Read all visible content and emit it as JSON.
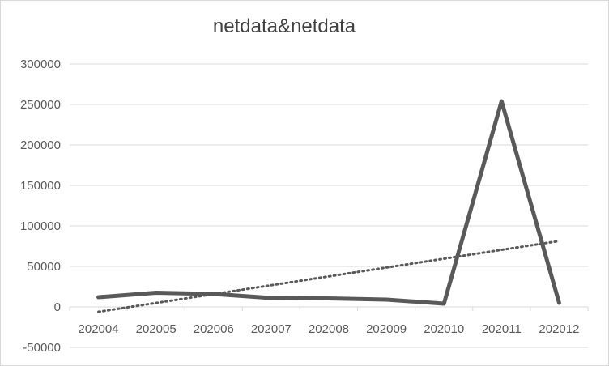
{
  "chart_data": {
    "type": "line",
    "title": "netdata&netdata",
    "categories": [
      "202004",
      "202005",
      "202006",
      "202007",
      "202008",
      "202009",
      "202010",
      "202011",
      "202012"
    ],
    "series": [
      {
        "values": [
          12000,
          17500,
          16000,
          11000,
          10500,
          9000,
          4000,
          254000,
          5000
        ],
        "color": "#595959"
      }
    ],
    "trendline": {
      "type": "linear",
      "style": "dotted",
      "color": "#595959"
    },
    "ylim": [
      -50000,
      300000
    ],
    "yticks": [
      -50000,
      0,
      50000,
      100000,
      150000,
      200000,
      250000,
      300000
    ],
    "ytick_labels": [
      "-50000",
      "0",
      "50000",
      "100000",
      "150000",
      "200000",
      "250000",
      "300000"
    ],
    "grid": true,
    "legend": "none"
  }
}
